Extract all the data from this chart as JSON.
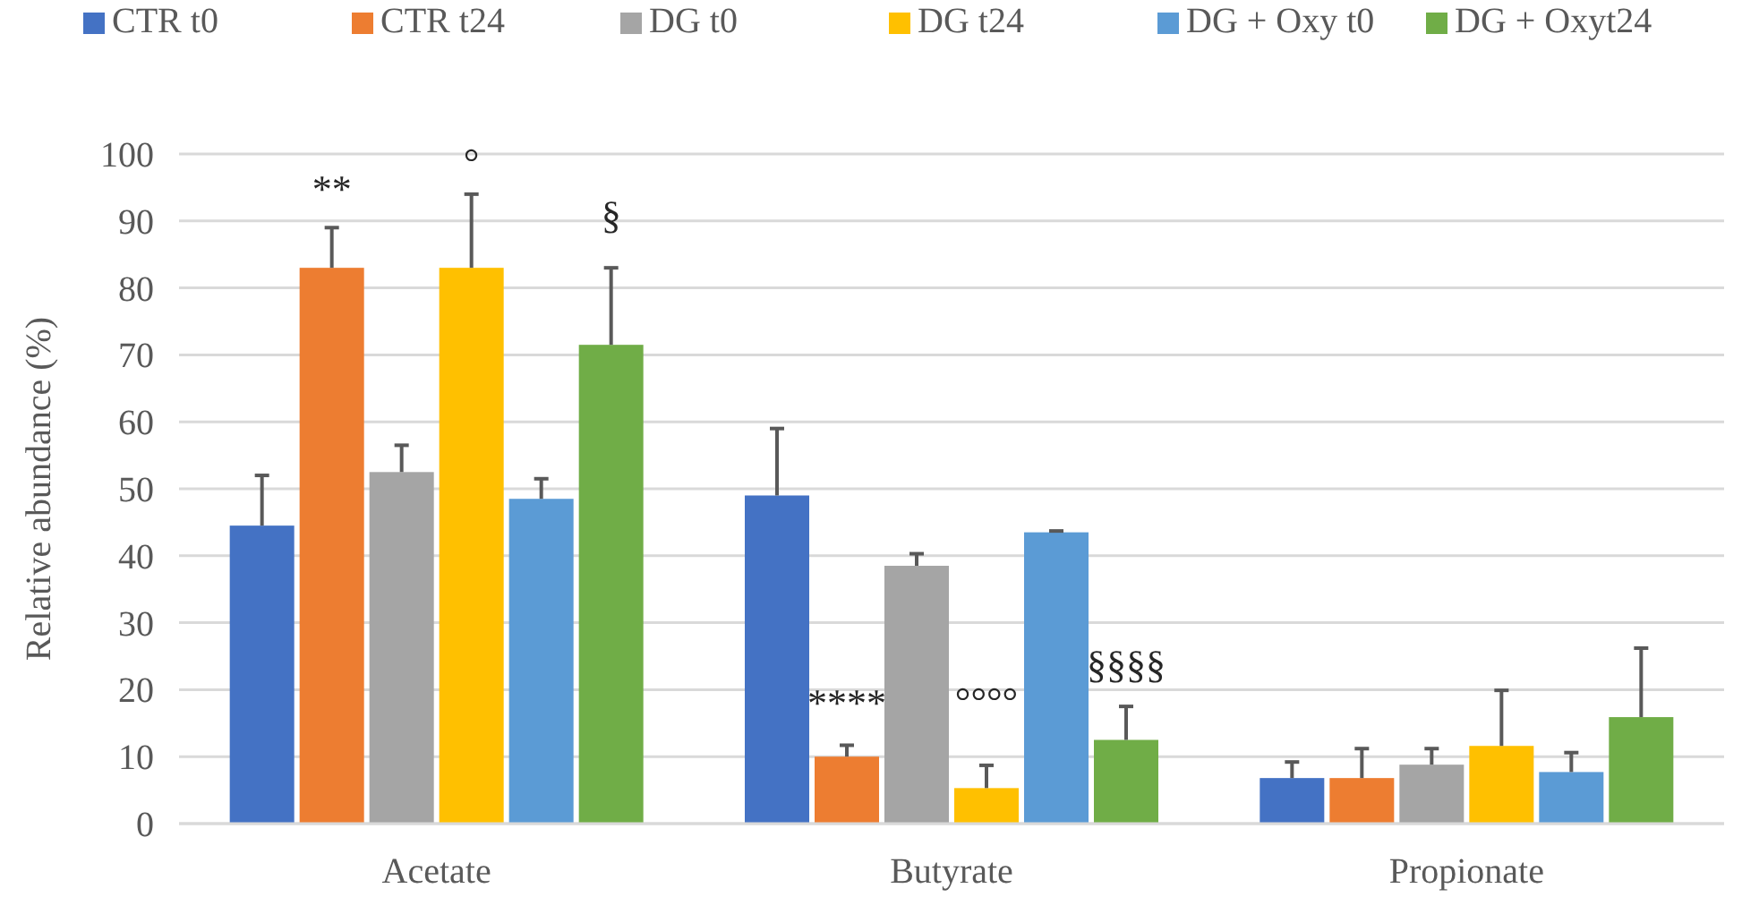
{
  "chart_data": {
    "type": "bar",
    "ylabel": "Relative abundance (%)",
    "categories": [
      "Acetate",
      "Butyrate",
      "Propionate"
    ],
    "series": [
      {
        "name": "CTR t0",
        "color": "#4472c4",
        "values": [
          44.5,
          49,
          6.8
        ],
        "errors": [
          [
            44.5,
            52
          ],
          [
            49,
            59
          ],
          [
            6.8,
            9.2
          ]
        ]
      },
      {
        "name": "CTR t24",
        "color": "#ed7d31",
        "values": [
          83,
          10,
          6.8
        ],
        "errors": [
          [
            83,
            89
          ],
          [
            10,
            11.7
          ],
          [
            6.8,
            11.2
          ]
        ]
      },
      {
        "name": "DG t0",
        "color": "#a5a5a5",
        "values": [
          52.5,
          38.5,
          8.8
        ],
        "errors": [
          [
            52.5,
            56.5
          ],
          [
            38.5,
            40.3
          ],
          [
            8.8,
            11.2
          ]
        ]
      },
      {
        "name": "DG t24",
        "color": "#ffc000",
        "values": [
          83,
          5.3,
          11.6
        ],
        "errors": [
          [
            83,
            94
          ],
          [
            5.3,
            8.7
          ],
          [
            11.6,
            19.9
          ]
        ]
      },
      {
        "name": "DG + Oxy t0",
        "color": "#5b9bd5",
        "values": [
          48.5,
          43.5,
          7.7
        ],
        "errors": [
          [
            48.5,
            51.5
          ],
          [
            43.5,
            43.7
          ],
          [
            7.7,
            10.6
          ]
        ]
      },
      {
        "name": "DG + Oxyt24",
        "color": "#70ad47",
        "values": [
          71.5,
          12.5,
          15.9
        ],
        "errors": [
          [
            71.5,
            83
          ],
          [
            12.5,
            17.5
          ],
          [
            15.9,
            26.2
          ]
        ]
      }
    ],
    "ylim": [
      0,
      100
    ],
    "yticks": [
      0,
      10,
      20,
      30,
      40,
      50,
      60,
      70,
      80,
      90,
      100
    ],
    "grid": "y",
    "legend": "top",
    "annotations": [
      "**",
      "°",
      "§",
      "****",
      "°°°°",
      "§§§§"
    ]
  }
}
